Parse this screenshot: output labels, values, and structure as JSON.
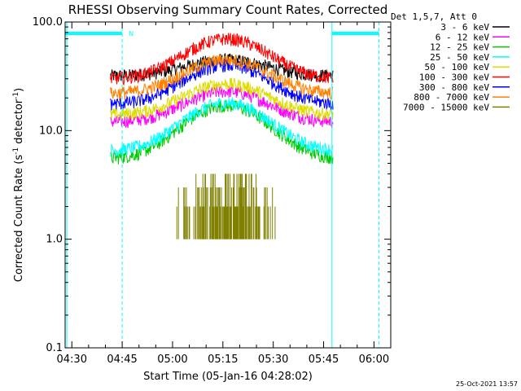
{
  "chart_data": {
    "type": "line",
    "title": "RHESSI Observing Summary Count Rates, Corrected",
    "ylabel": "Corrected Count Rate (s⁻¹ detector⁻¹)",
    "ylabel_main": "Corrected Count Rate (s",
    "ylabel_sup1": "-1",
    "ylabel_mid": " detector",
    "ylabel_sup2": "-1",
    "ylabel_end": ")",
    "xlabel": "Start Time (05-Jan-16 04:28:02)",
    "yscale": "log",
    "ylim": [
      0.1,
      100.0
    ],
    "xlim_minutes": [
      268,
      365
    ],
    "yticks": [
      {
        "value": 100.0,
        "label": "100.0"
      },
      {
        "value": 10.0,
        "label": "10.0"
      },
      {
        "value": 1.0,
        "label": "1.0"
      },
      {
        "value": 0.1,
        "label": "0.1"
      }
    ],
    "xticks": [
      {
        "minute": 270,
        "label": "04:30"
      },
      {
        "minute": 285,
        "label": "04:45"
      },
      {
        "minute": 300,
        "label": "05:00"
      },
      {
        "minute": 315,
        "label": "05:15"
      },
      {
        "minute": 330,
        "label": "05:30"
      },
      {
        "minute": 345,
        "label": "05:45"
      },
      {
        "minute": 360,
        "label": "06:00"
      }
    ],
    "legend_title": "Det 1,5,7, Att 0",
    "legend_position": "right",
    "footer_date": "25-Oct-2021 13:57",
    "data_window_minutes": [
      281.5,
      347.8
    ],
    "peak_minute": 316,
    "series": [
      {
        "name": "3 - 6 keV",
        "color": "#000000",
        "base": 32,
        "peak": 45
      },
      {
        "name": "6 - 12 keV",
        "color": "#ff00ff",
        "base": 12,
        "peak": 23
      },
      {
        "name": "12 - 25 keV",
        "color": "#00cc00",
        "base": 5.5,
        "peak": 17
      },
      {
        "name": "25 - 50 keV",
        "color": "#00ffff",
        "base": 6.5,
        "peak": 18
      },
      {
        "name": "50 - 100 keV",
        "color": "#dddd00",
        "base": 14,
        "peak": 27
      },
      {
        "name": "100 - 300 keV",
        "color": "#ff0000",
        "base": 30,
        "peak": 70
      },
      {
        "name": "300 - 800 keV",
        "color": "#0000ff",
        "base": 17.5,
        "peak": 40
      },
      {
        "name": "800 - 7000 keV",
        "color": "#ff8000",
        "base": 22,
        "peak": 45
      },
      {
        "name": "7000 - 15000 keV",
        "color": "#808000",
        "base": 1.0,
        "peak": 3.0
      }
    ],
    "annotations": {
      "saa_intervals_minutes": [
        [
          268,
          285
        ],
        [
          347.5,
          361.5
        ]
      ],
      "night_boundaries_minutes": [
        268.5,
        285,
        347.5,
        361.5
      ],
      "flag_label": "N"
    }
  },
  "colors": {
    "axis": "#000000",
    "boundary": "#00ffff"
  }
}
